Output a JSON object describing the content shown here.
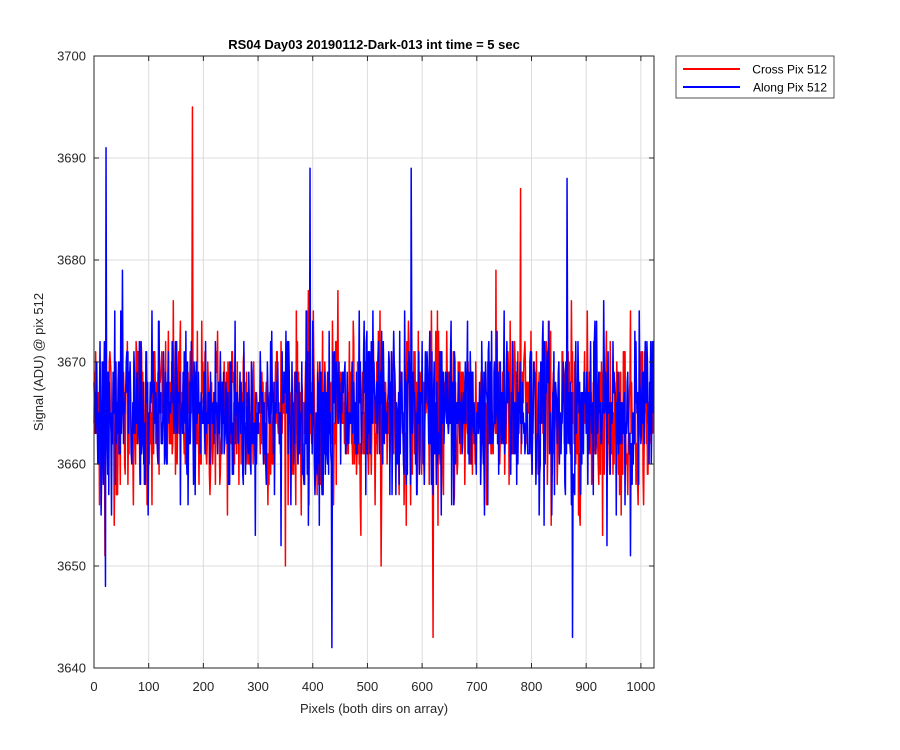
{
  "chart_data": {
    "type": "line",
    "title": "RS04 Day03 20190112-Dark-013 int time = 5 sec",
    "xlabel": "Pixels (both dirs on array)",
    "ylabel": "Signal (ADU) @ pix 512",
    "xlim": [
      0,
      1024
    ],
    "ylim": [
      3640,
      3700
    ],
    "xticks": [
      "0",
      "100",
      "200",
      "300",
      "400",
      "500",
      "600",
      "700",
      "800",
      "900",
      "1000"
    ],
    "yticks": [
      "3640",
      "3650",
      "3660",
      "3670",
      "3680",
      "3690",
      "3700"
    ],
    "grid": true,
    "legend_position": "outside-top-right",
    "series": [
      {
        "name": "Cross Pix 512",
        "color": "#ff0000",
        "noise": {
          "mean": 3665,
          "std": 4.3,
          "min": 3643,
          "max": 3695,
          "points": 1024
        },
        "notable_points": [
          [
            20,
            3651
          ],
          [
            180,
            3695
          ],
          [
            620,
            3643
          ],
          [
            780,
            3687
          ]
        ]
      },
      {
        "name": "Along Pix 512",
        "color": "#0000ff",
        "noise": {
          "mean": 3665,
          "std": 4.3,
          "min": 3642,
          "max": 3691,
          "points": 1024
        },
        "notable_points": [
          [
            22,
            3691
          ],
          [
            395,
            3689
          ],
          [
            435,
            3642
          ],
          [
            580,
            3689
          ],
          [
            865,
            3688
          ],
          [
            875,
            3643
          ]
        ]
      }
    ]
  }
}
